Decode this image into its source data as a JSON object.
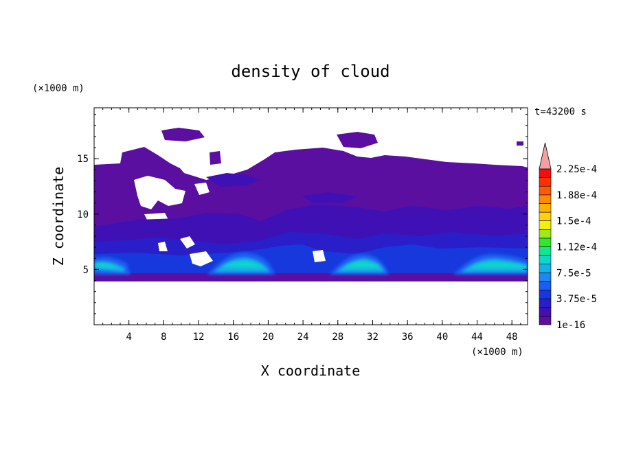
{
  "chart_data": {
    "type": "heatmap",
    "title": "density of cloud",
    "xlabel": "X coordinate",
    "ylabel": "Z coordinate",
    "x_unit": "(×1000 m)",
    "y_unit": "(×1000 m)",
    "time_label": "t=43200 s",
    "xlim": [
      0,
      49.8
    ],
    "ylim": [
      0,
      19.6
    ],
    "xticks": [
      "4",
      "8",
      "12",
      "16",
      "20",
      "24",
      "28",
      "32",
      "36",
      "40",
      "44",
      "48"
    ],
    "yticks": [
      "5",
      "10",
      "15"
    ],
    "colorbar": {
      "labels": [
        "1e-16",
        "3.75e-5",
        "7.5e-5",
        "1.12e-4",
        "1.5e-4",
        "1.88e-4",
        "2.25e-4"
      ],
      "levels": [
        "#5a0fa0",
        "#3f10b4",
        "#2a1ec8",
        "#1638dc",
        "#1a5ef0",
        "#1e86f5",
        "#14b0e8",
        "#10d8c8",
        "#10e890",
        "#30e830",
        "#a0e818",
        "#f0f010",
        "#ffd010",
        "#ffb000",
        "#ff8a00",
        "#ff5a00",
        "#ff3000",
        "#f01010"
      ],
      "over_color": "#f5a0a0"
    },
    "cloud_layers": [
      {
        "name": "upper cloud",
        "z_range": [
          4.5,
          17.5
        ],
        "level": "1e-16"
      },
      {
        "name": "lower cloud band",
        "z_range": [
          4.2,
          7.0
        ],
        "peak": "1.12e-4"
      }
    ],
    "dense_cores": [
      {
        "x": 2,
        "z": 5.6,
        "level": "1.12e-4"
      },
      {
        "x": 17,
        "z": 5.7,
        "level": "1.12e-4"
      },
      {
        "x": 30.5,
        "z": 5.7,
        "level": "1.12e-4"
      },
      {
        "x": 46,
        "z": 5.6,
        "level": "1.12e-4"
      }
    ]
  }
}
